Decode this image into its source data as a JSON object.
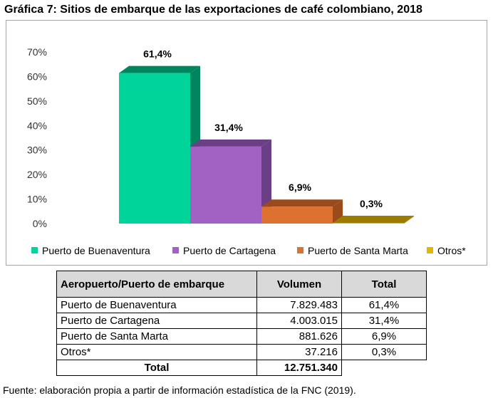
{
  "title": "Gráfica 7: Sitios de embarque de las exportaciones de café colombiano, 2018",
  "chart_data": {
    "type": "bar",
    "title": "",
    "xlabel": "",
    "ylabel": "",
    "ylim": [
      0,
      70
    ],
    "yticks": [
      "0%",
      "10%",
      "20%",
      "30%",
      "40%",
      "50%",
      "60%",
      "70%"
    ],
    "grid": false,
    "legend_position": "bottom",
    "categories": [
      "Puerto de Buenaventura",
      "Puerto de Cartagena",
      "Puerto de Santa Marta",
      "Otros*"
    ],
    "values": [
      61.4,
      31.4,
      6.9,
      0.3
    ],
    "data_labels": [
      "61,4%",
      "31,4%",
      "6,9%",
      "0,3%"
    ],
    "colors": [
      "#00d49a",
      "#a262c4",
      "#dd7230",
      "#e2b700"
    ],
    "side_colors": [
      "#00855f",
      "#6b3f86",
      "#9a4a1c",
      "#9c7c00"
    ]
  },
  "table": {
    "headers": [
      "Aeropuerto/Puerto de embarque",
      "Volumen",
      "Total"
    ],
    "rows": [
      {
        "name": "Puerto de Buenaventura",
        "volume": "7.829.483",
        "total": "61,4%"
      },
      {
        "name": "Puerto de Cartagena",
        "volume": "4.003.015",
        "total": "31,4%"
      },
      {
        "name": "Puerto de Santa Marta",
        "volume": "881.626",
        "total": "6,9%"
      },
      {
        "name": "Otros*",
        "volume": "37.216",
        "total": "0,3%"
      }
    ],
    "total_label": "Total",
    "total_volume": "12.751.340"
  },
  "source": "Fuente: elaboración propia a partir de información estadística de la FNC (2019)."
}
